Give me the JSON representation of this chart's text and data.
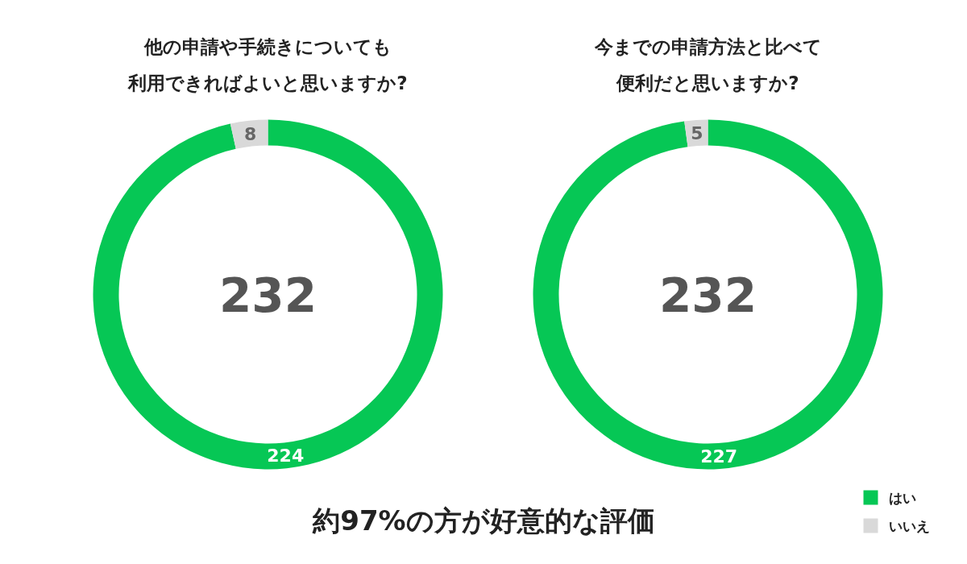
{
  "chart_data": [
    {
      "type": "donut",
      "title": "他の申請や手続きについても利用できればよいと思いますか?",
      "categories": [
        "はい",
        "いいえ"
      ],
      "values": [
        224,
        8
      ],
      "colors": [
        "#06c755",
        "#d9d9d9"
      ],
      "data_labels": true,
      "legend": "bottom right",
      "annotations": [
        "232",
        "約97%の方が好意的な評価"
      ]
    },
    {
      "type": "donut",
      "title": "今までの申請方法と比べて便利だと思いますか?",
      "categories": [
        null,
        null
      ],
      "values": [
        227,
        5
      ],
      "colors": [
        "#06c755",
        "#d9d9d9"
      ],
      "data_labels": true,
      "annotations": [
        "232"
      ]
    }
  ]
}
